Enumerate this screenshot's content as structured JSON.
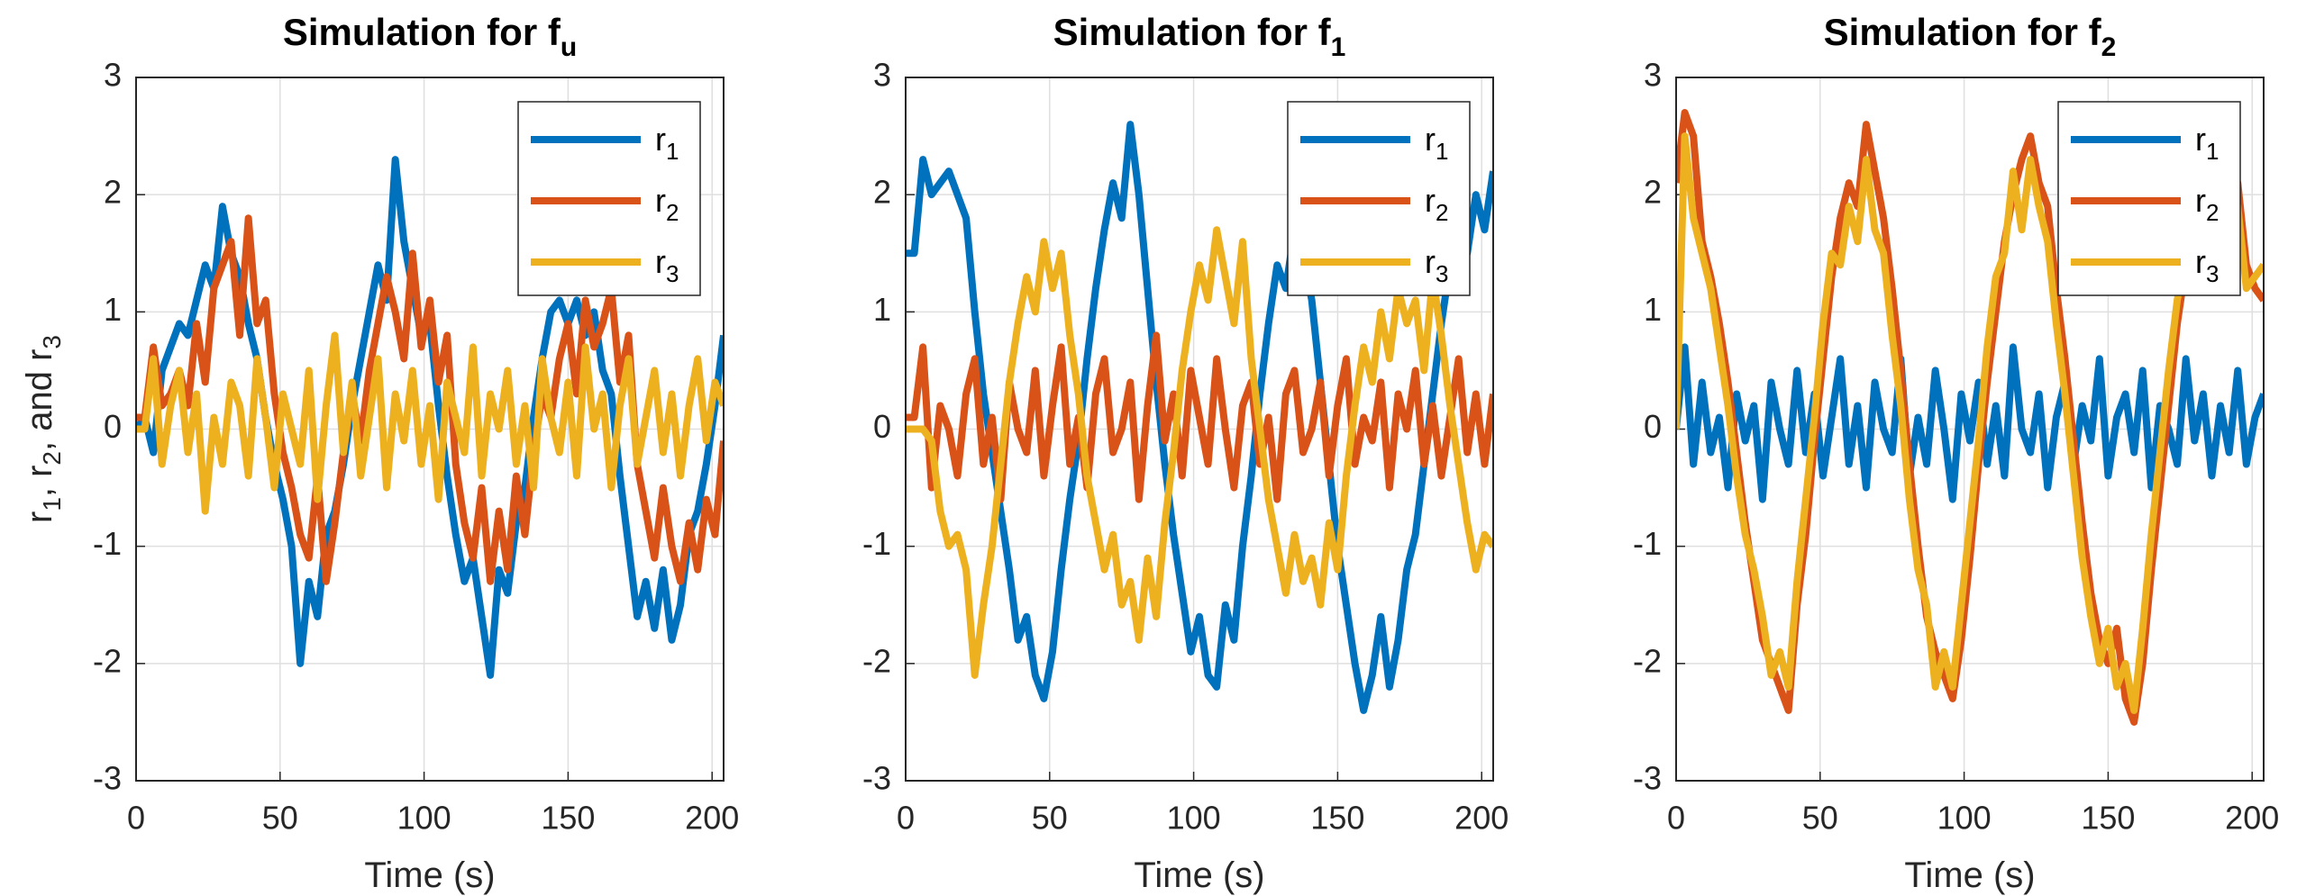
{
  "chart_data": [
    {
      "type": "line",
      "title": "Simulation for f",
      "title_sub": "u",
      "xlabel": "Time (s)",
      "ylabel": [
        "r",
        "1",
        ", r",
        "2",
        ", and r",
        "3"
      ],
      "xlim": [
        0,
        204
      ],
      "ylim": [
        -3,
        3
      ],
      "xticks": [
        0,
        50,
        100,
        150,
        200
      ],
      "yticks": [
        -3,
        -2,
        -1,
        0,
        1,
        2,
        3
      ],
      "grid": true,
      "legend": "northeast",
      "x": [
        0,
        3,
        6,
        9,
        12,
        15,
        18,
        21,
        24,
        27,
        30,
        33,
        36,
        39,
        42,
        45,
        48,
        51,
        54,
        57,
        60,
        63,
        66,
        69,
        72,
        75,
        78,
        81,
        84,
        87,
        90,
        93,
        96,
        99,
        102,
        105,
        108,
        111,
        114,
        117,
        120,
        123,
        126,
        129,
        132,
        135,
        138,
        141,
        144,
        147,
        150,
        153,
        156,
        159,
        162,
        165,
        168,
        171,
        174,
        177,
        180,
        183,
        186,
        189,
        192,
        195,
        198,
        201,
        204
      ],
      "series": [
        {
          "name": "r",
          "name_sub": "1",
          "color": "#0072BD",
          "values": [
            0,
            0.1,
            -0.2,
            0.5,
            0.7,
            0.9,
            0.8,
            1.1,
            1.4,
            1.2,
            1.9,
            1.5,
            1.3,
            0.9,
            0.6,
            0.1,
            -0.3,
            -0.6,
            -1.0,
            -2.0,
            -1.3,
            -1.6,
            -0.9,
            -0.7,
            -0.3,
            0.2,
            0.6,
            1.0,
            1.4,
            1.1,
            2.3,
            1.6,
            1.2,
            0.8,
            0.9,
            0.2,
            -0.4,
            -0.9,
            -1.3,
            -1.1,
            -1.6,
            -2.1,
            -1.2,
            -1.4,
            -0.8,
            -0.5,
            0.1,
            0.6,
            1.0,
            1.1,
            0.9,
            1.1,
            0.8,
            1.0,
            0.5,
            0.3,
            -0.4,
            -1.0,
            -1.6,
            -1.3,
            -1.7,
            -1.2,
            -1.8,
            -1.5,
            -0.9,
            -0.7,
            -0.3,
            0.2,
            0.8
          ]
        },
        {
          "name": "r",
          "name_sub": "2",
          "color": "#D95319",
          "values": [
            0.1,
            0.1,
            0.7,
            0.2,
            0.3,
            0.5,
            0.2,
            0.9,
            0.4,
            1.2,
            1.4,
            1.6,
            0.8,
            1.8,
            0.9,
            1.1,
            0.3,
            -0.2,
            -0.5,
            -0.9,
            -1.1,
            -0.4,
            -1.3,
            -0.8,
            -0.2,
            0.3,
            -0.1,
            0.5,
            0.9,
            1.3,
            1.0,
            0.6,
            1.5,
            0.7,
            1.1,
            0.4,
            0.8,
            -0.3,
            -0.8,
            -1.1,
            -0.5,
            -1.3,
            -0.7,
            -1.2,
            -0.4,
            -0.9,
            -0.2,
            0.3,
            0.1,
            0.6,
            0.9,
            0.3,
            1.1,
            0.7,
            0.9,
            1.2,
            0.4,
            0.8,
            -0.3,
            -0.7,
            -1.1,
            -0.5,
            -1.0,
            -1.3,
            -0.8,
            -1.2,
            -0.6,
            -0.9,
            -0.1
          ]
        },
        {
          "name": "r",
          "name_sub": "3",
          "color": "#EDB120",
          "values": [
            0,
            0,
            0.6,
            -0.3,
            0.2,
            0.5,
            -0.2,
            0.3,
            -0.7,
            0.1,
            -0.3,
            0.4,
            0.2,
            -0.4,
            0.6,
            0.1,
            -0.5,
            0.3,
            0.0,
            -0.3,
            0.5,
            -0.6,
            0.2,
            0.8,
            -0.2,
            0.4,
            -0.4,
            0.1,
            0.6,
            -0.5,
            0.3,
            -0.1,
            0.5,
            -0.3,
            0.2,
            -0.6,
            0.4,
            0.1,
            -0.2,
            0.7,
            -0.4,
            0.3,
            0.0,
            0.5,
            -0.3,
            0.2,
            -0.5,
            0.6,
            0.1,
            -0.2,
            0.4,
            -0.4,
            0.7,
            0.0,
            0.3,
            -0.5,
            0.2,
            0.6,
            -0.3,
            0.1,
            0.5,
            -0.2,
            0.3,
            -0.4,
            0.2,
            0.6,
            -0.1,
            0.4,
            0.2
          ]
        }
      ]
    },
    {
      "type": "line",
      "title": "Simulation for f",
      "title_sub": "1",
      "xlabel": "Time (s)",
      "xlim": [
        0,
        204
      ],
      "ylim": [
        -3,
        3
      ],
      "xticks": [
        0,
        50,
        100,
        150,
        200
      ],
      "yticks": [
        -3,
        -2,
        -1,
        0,
        1,
        2,
        3
      ],
      "grid": true,
      "legend": "northeast",
      "x": [
        0,
        3,
        6,
        9,
        12,
        15,
        18,
        21,
        24,
        27,
        30,
        33,
        36,
        39,
        42,
        45,
        48,
        51,
        54,
        57,
        60,
        63,
        66,
        69,
        72,
        75,
        78,
        81,
        84,
        87,
        90,
        93,
        96,
        99,
        102,
        105,
        108,
        111,
        114,
        117,
        120,
        123,
        126,
        129,
        132,
        135,
        138,
        141,
        144,
        147,
        150,
        153,
        156,
        159,
        162,
        165,
        168,
        171,
        174,
        177,
        180,
        183,
        186,
        189,
        192,
        195,
        198,
        201,
        204
      ],
      "series": [
        {
          "name": "r",
          "name_sub": "1",
          "color": "#0072BD",
          "values": [
            1.5,
            1.5,
            2.3,
            2.0,
            2.1,
            2.2,
            2.0,
            1.8,
            1.0,
            0.3,
            -0.2,
            -0.7,
            -1.2,
            -1.8,
            -1.6,
            -2.1,
            -2.3,
            -1.9,
            -1.2,
            -0.6,
            -0.1,
            0.6,
            1.2,
            1.7,
            2.1,
            1.8,
            2.6,
            2.0,
            1.2,
            0.4,
            -0.3,
            -0.9,
            -1.4,
            -1.9,
            -1.6,
            -2.1,
            -2.2,
            -1.5,
            -1.8,
            -1.0,
            -0.4,
            0.3,
            0.9,
            1.4,
            1.2,
            1.7,
            1.5,
            1.1,
            0.4,
            -0.3,
            -1.0,
            -1.5,
            -2.0,
            -2.4,
            -2.1,
            -1.6,
            -2.2,
            -1.8,
            -1.2,
            -0.9,
            -0.3,
            0.3,
            0.9,
            1.4,
            1.8,
            1.5,
            2.0,
            1.7,
            2.2
          ]
        },
        {
          "name": "r",
          "name_sub": "2",
          "color": "#D95319",
          "values": [
            0.1,
            0.1,
            0.7,
            -0.5,
            0.2,
            0.0,
            -0.4,
            0.3,
            0.6,
            -0.3,
            0.1,
            -0.6,
            0.4,
            0.0,
            -0.2,
            0.5,
            -0.4,
            0.2,
            0.7,
            -0.3,
            0.1,
            -0.5,
            0.3,
            0.6,
            -0.2,
            0.0,
            0.4,
            -0.6,
            0.2,
            0.8,
            -0.1,
            0.3,
            -0.4,
            0.5,
            0.1,
            -0.3,
            0.6,
            0.0,
            -0.5,
            0.2,
            0.4,
            -0.3,
            0.1,
            -0.6,
            0.3,
            0.5,
            -0.2,
            0.0,
            0.4,
            -0.4,
            0.2,
            0.6,
            -0.3,
            0.1,
            -0.1,
            0.4,
            -0.5,
            0.3,
            0.0,
            0.5,
            -0.3,
            0.2,
            -0.4,
            0.1,
            0.6,
            -0.2,
            0.3,
            -0.3,
            0.3
          ]
        },
        {
          "name": "r",
          "name_sub": "3",
          "color": "#EDB120",
          "values": [
            0,
            0,
            0,
            -0.1,
            -0.7,
            -1.0,
            -0.9,
            -1.2,
            -2.1,
            -1.5,
            -1.0,
            -0.3,
            0.4,
            0.9,
            1.3,
            1.0,
            1.6,
            1.2,
            1.5,
            0.8,
            0.3,
            -0.4,
            -0.8,
            -1.2,
            -0.9,
            -1.5,
            -1.3,
            -1.8,
            -1.1,
            -1.6,
            -0.8,
            -0.2,
            0.5,
            1.0,
            1.4,
            1.1,
            1.7,
            1.3,
            0.9,
            1.6,
            0.6,
            0.0,
            -0.6,
            -1.0,
            -1.4,
            -0.9,
            -1.3,
            -1.1,
            -1.5,
            -0.8,
            -1.2,
            -0.4,
            0.2,
            0.7,
            0.4,
            1.0,
            0.6,
            1.2,
            0.9,
            1.1,
            0.5,
            1.3,
            0.8,
            0.2,
            -0.3,
            -0.8,
            -1.2,
            -0.9,
            -1.0
          ]
        }
      ]
    },
    {
      "type": "line",
      "title": "Simulation for f",
      "title_sub": "2",
      "xlabel": "Time (s)",
      "xlim": [
        0,
        204
      ],
      "ylim": [
        -3,
        3
      ],
      "xticks": [
        0,
        50,
        100,
        150,
        200
      ],
      "yticks": [
        -3,
        -2,
        -1,
        0,
        1,
        2,
        3
      ],
      "grid": true,
      "legend": "northeast",
      "x": [
        0,
        3,
        6,
        9,
        12,
        15,
        18,
        21,
        24,
        27,
        30,
        33,
        36,
        39,
        42,
        45,
        48,
        51,
        54,
        57,
        60,
        63,
        66,
        69,
        72,
        75,
        78,
        81,
        84,
        87,
        90,
        93,
        96,
        99,
        102,
        105,
        108,
        111,
        114,
        117,
        120,
        123,
        126,
        129,
        132,
        135,
        138,
        141,
        144,
        147,
        150,
        153,
        156,
        159,
        162,
        165,
        168,
        171,
        174,
        177,
        180,
        183,
        186,
        189,
        192,
        195,
        198,
        201,
        204
      ],
      "series": [
        {
          "name": "r",
          "name_sub": "1",
          "color": "#0072BD",
          "values": [
            0,
            0.7,
            -0.3,
            0.4,
            -0.2,
            0.1,
            -0.5,
            0.3,
            -0.1,
            0.2,
            -0.6,
            0.4,
            0.0,
            -0.3,
            0.5,
            -0.2,
            0.3,
            -0.4,
            0.1,
            0.6,
            -0.3,
            0.2,
            -0.5,
            0.4,
            0.0,
            -0.2,
            0.6,
            -0.4,
            0.1,
            -0.3,
            0.5,
            0.0,
            -0.6,
            0.3,
            -0.1,
            0.4,
            -0.3,
            0.2,
            -0.4,
            0.7,
            0.0,
            -0.2,
            0.3,
            -0.5,
            0.1,
            0.4,
            -0.3,
            0.2,
            -0.1,
            0.6,
            -0.4,
            0.1,
            0.3,
            -0.2,
            0.5,
            -0.5,
            0.2,
            0.0,
            -0.3,
            0.6,
            -0.1,
            0.3,
            -0.4,
            0.2,
            -0.2,
            0.5,
            -0.3,
            0.1,
            0.3
          ]
        },
        {
          "name": "r",
          "name_sub": "2",
          "color": "#D95319",
          "values": [
            2.1,
            2.7,
            2.5,
            1.6,
            1.3,
            0.9,
            0.4,
            -0.2,
            -0.8,
            -1.3,
            -1.8,
            -2.0,
            -2.2,
            -2.4,
            -1.5,
            -0.9,
            -0.1,
            0.6,
            1.3,
            1.8,
            2.1,
            1.9,
            2.6,
            2.2,
            1.8,
            1.2,
            0.5,
            -0.3,
            -1.0,
            -1.6,
            -1.9,
            -2.1,
            -2.3,
            -1.8,
            -1.1,
            -0.3,
            0.4,
            1.0,
            1.6,
            2.0,
            2.3,
            2.5,
            2.1,
            1.9,
            1.2,
            0.6,
            -0.1,
            -0.8,
            -1.4,
            -1.8,
            -2.0,
            -1.7,
            -2.3,
            -2.5,
            -2.0,
            -1.2,
            -0.5,
            0.2,
            0.9,
            1.4,
            1.8,
            2.2,
            2.6,
            2.0,
            1.7,
            2.1,
            1.4,
            1.2,
            1.1
          ]
        },
        {
          "name": "r",
          "name_sub": "3",
          "color": "#EDB120",
          "values": [
            0,
            2.5,
            1.8,
            1.5,
            1.2,
            0.7,
            0.2,
            -0.4,
            -0.9,
            -1.2,
            -1.6,
            -2.1,
            -1.9,
            -2.2,
            -1.3,
            -0.6,
            0.1,
            0.9,
            1.5,
            1.4,
            1.9,
            1.6,
            2.3,
            1.7,
            1.5,
            0.8,
            0.2,
            -0.6,
            -1.2,
            -1.5,
            -2.2,
            -1.9,
            -2.2,
            -1.5,
            -0.8,
            -0.1,
            0.7,
            1.3,
            1.5,
            2.2,
            1.7,
            2.3,
            1.9,
            1.6,
            0.9,
            0.3,
            -0.4,
            -1.1,
            -1.6,
            -2.0,
            -1.7,
            -2.2,
            -2.0,
            -2.4,
            -1.7,
            -0.9,
            -0.2,
            0.5,
            1.1,
            1.5,
            1.6,
            2.0,
            2.2,
            1.8,
            1.5,
            1.9,
            1.2,
            1.3,
            1.4
          ]
        }
      ]
    }
  ]
}
